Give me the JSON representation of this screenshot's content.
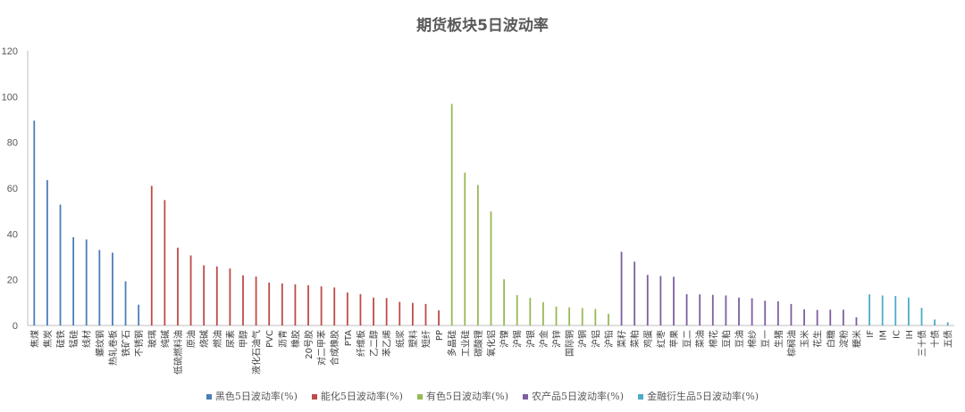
{
  "chart_data": {
    "type": "bar",
    "title": "期货板块5日波动率",
    "xlabel": "",
    "ylabel": "",
    "ylim": [
      0,
      120
    ],
    "yticks": [
      0,
      20,
      40,
      60,
      80,
      100,
      120
    ],
    "grid": false,
    "legend_position": "bottom",
    "series": [
      {
        "name": "黑色5日波动率(%)",
        "color": "#4a7ebb",
        "categories": [
          "焦煤",
          "焦炭",
          "硅铁",
          "锰硅",
          "线材",
          "螺纹钢",
          "热轧卷板",
          "铁矿石",
          "不锈钢"
        ],
        "values": [
          89.5,
          63.5,
          52.8,
          38.6,
          37.6,
          33.0,
          31.8,
          19.3,
          9.1
        ]
      },
      {
        "name": "能化5日波动率(%)",
        "color": "#be4b48",
        "categories": [
          "玻璃",
          "纯碱",
          "低硫燃料油",
          "原油",
          "烧碱",
          "燃油",
          "尿素",
          "甲醇",
          "液化石油气",
          "PVC",
          "沥青",
          "橡胶",
          "20号胶",
          "对二甲苯",
          "合成橡胶",
          "PTA",
          "纤维板",
          "乙二醇",
          "苯乙烯",
          "纸浆",
          "塑料",
          "短纤",
          "PP"
        ],
        "values": [
          61.0,
          54.8,
          34.0,
          30.6,
          26.3,
          25.8,
          24.9,
          21.9,
          21.4,
          18.8,
          18.4,
          18.0,
          17.6,
          17.1,
          16.6,
          14.4,
          13.7,
          12.2,
          12.0,
          10.3,
          9.9,
          9.4,
          6.6
        ]
      },
      {
        "name": "有色5日波动率(%)",
        "color": "#98b954",
        "categories": [
          "多晶硅",
          "工业硅",
          "碳酸锂",
          "氧化铝",
          "沪镍",
          "沪锡",
          "沪银",
          "沪金",
          "沪锌",
          "国际铜",
          "沪铜",
          "沪铝",
          "沪铅"
        ],
        "values": [
          96.8,
          66.8,
          61.4,
          49.8,
          20.2,
          13.3,
          12.1,
          10.2,
          8.3,
          7.9,
          7.6,
          7.2,
          5.1
        ]
      },
      {
        "name": "农产品5日波动率(%)",
        "color": "#7d5fa0",
        "categories": [
          "菜籽",
          "菜粕",
          "鸡蛋",
          "红枣",
          "苹果",
          "豆二",
          "菜油",
          "棉花",
          "豆粕",
          "豆油",
          "棉纱",
          "豆一",
          "生猪",
          "棕榈油",
          "玉米",
          "花生",
          "白糖",
          "淀粉",
          "粳米"
        ],
        "values": [
          32.2,
          27.9,
          22.1,
          21.6,
          21.3,
          13.7,
          13.6,
          13.4,
          13.1,
          12.2,
          11.9,
          10.8,
          10.6,
          9.4,
          7.1,
          6.8,
          6.9,
          6.9,
          3.6
        ]
      },
      {
        "name": "金融衍生品5日波动率(%)",
        "color": "#4bacc6",
        "categories": [
          "IF",
          "IM",
          "IC",
          "IH",
          "三十债",
          "十债",
          "五债"
        ],
        "values": [
          13.6,
          13.1,
          12.9,
          12.2,
          7.7,
          2.6,
          1.4
        ]
      }
    ]
  }
}
